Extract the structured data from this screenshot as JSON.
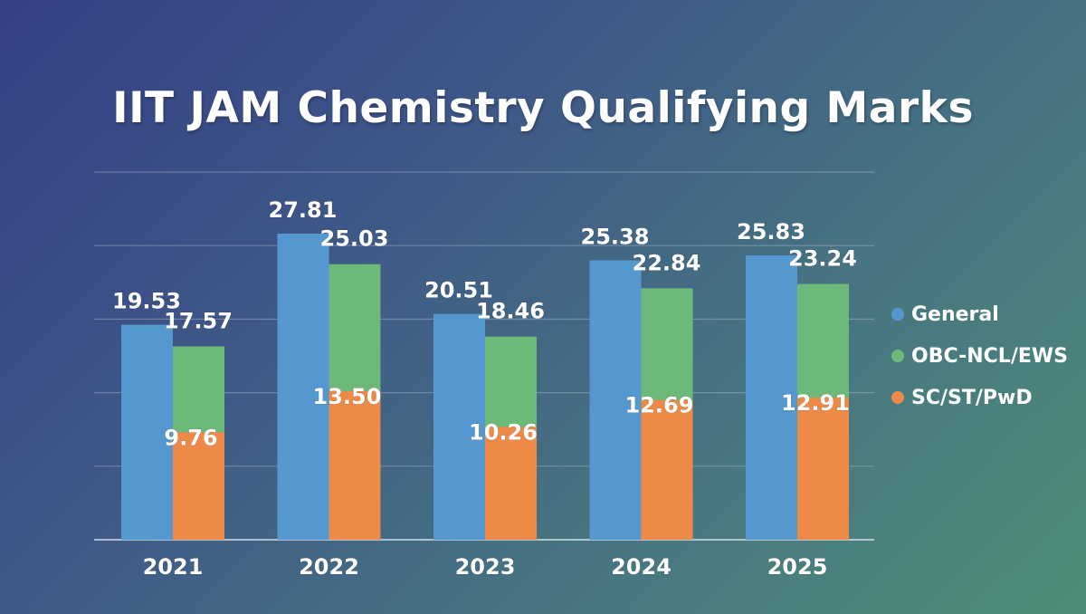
{
  "chart_data": {
    "type": "bar",
    "title": "IIT JAM Chemistry Qualifying Marks",
    "categories": [
      "2021",
      "2022",
      "2023",
      "2024",
      "2025"
    ],
    "series": [
      {
        "name": "General",
        "color": "#5598d0",
        "values": [
          19.53,
          27.81,
          20.51,
          25.38,
          25.83
        ]
      },
      {
        "name": "OBC-NCL/EWS",
        "color": "#6db97a",
        "values": [
          17.57,
          25.03,
          18.46,
          22.84,
          23.24
        ]
      },
      {
        "name": "SC/ST/PwD",
        "color": "#ee8a48",
        "values": [
          9.76,
          13.5,
          10.26,
          12.69,
          12.91
        ]
      }
    ],
    "value_labels": [
      [
        "19.53",
        "27.81",
        "20.51",
        "25.38",
        "25.83"
      ],
      [
        "17.57",
        "25.03",
        "18.46",
        "22.84",
        "23.24"
      ],
      [
        "9.76",
        "13.50",
        "10.26",
        "12.69",
        "12.91"
      ]
    ],
    "grid": true,
    "legend": "right",
    "xlabel": "",
    "ylabel": ""
  }
}
